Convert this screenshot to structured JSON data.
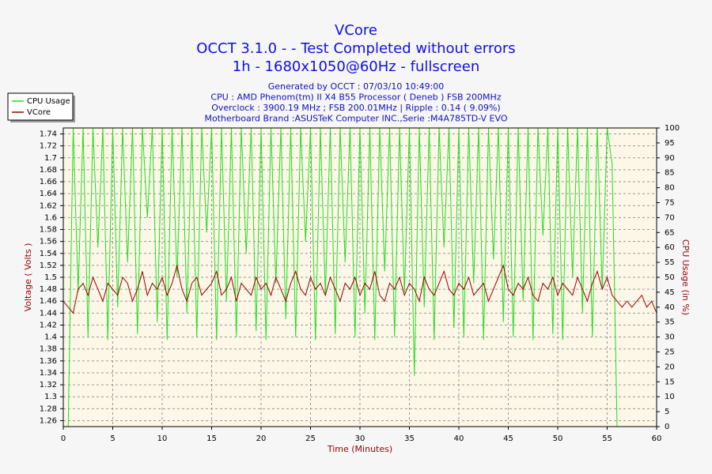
{
  "chart_data": {
    "type": "line",
    "title": [
      "VCore",
      "OCCT 3.1.0 -  - Test Completed without errors",
      "1h - 1680x1050@60Hz - fullscreen"
    ],
    "subtitle": [
      "Generated by OCCT : 07/03/10 10:49:00",
      "CPU : AMD Phenom(tm) II X4 B55 Processor ( Deneb ) FSB 200MHz",
      "Overclock : 3900.19 MHz ; FSB 200.01MHz | Ripple : 0.14 ( 9.09%)",
      "Motherboard Brand :ASUSTeK Computer INC.,Serie :M4A785TD-V EVO"
    ],
    "xlabel": "Time (Minutes)",
    "ylabel": "Voltage ( Volts )",
    "y2label": "CPU Usage (in %)",
    "x": [
      0,
      0.5,
      1,
      1.5,
      2,
      2.5,
      3,
      3.5,
      4,
      4.5,
      5,
      5.5,
      6,
      6.5,
      7,
      7.5,
      8,
      8.5,
      9,
      9.5,
      10,
      10.5,
      11,
      11.5,
      12,
      12.5,
      13,
      13.5,
      14,
      14.5,
      15,
      15.5,
      16,
      16.5,
      17,
      17.5,
      18,
      18.5,
      19,
      19.5,
      20,
      20.5,
      21,
      21.5,
      22,
      22.5,
      23,
      23.5,
      24,
      24.5,
      25,
      25.5,
      26,
      26.5,
      27,
      27.5,
      28,
      28.5,
      29,
      29.5,
      30,
      30.5,
      31,
      31.5,
      32,
      32.5,
      33,
      33.5,
      34,
      34.5,
      35,
      35.5,
      36,
      36.5,
      37,
      37.5,
      38,
      38.5,
      39,
      39.5,
      40,
      40.5,
      41,
      41.5,
      42,
      42.5,
      43,
      43.5,
      44,
      44.5,
      45,
      45.5,
      46,
      46.5,
      47,
      47.5,
      48,
      48.5,
      49,
      49.5,
      50,
      50.5,
      51,
      51.5,
      52,
      52.5,
      53,
      53.5,
      54,
      54.5,
      55,
      55.5,
      56,
      56.5,
      57,
      57.5,
      58,
      58.5,
      59,
      59.5,
      60
    ],
    "series": [
      {
        "name": "CPU Usage",
        "color": "#22dd22",
        "axis": "y2",
        "values": [
          null,
          0,
          100,
          45,
          100,
          30,
          100,
          60,
          100,
          29,
          100,
          40,
          100,
          55,
          100,
          31,
          100,
          70,
          100,
          35,
          100,
          29,
          100,
          50,
          100,
          38,
          100,
          30,
          100,
          65,
          100,
          29,
          100,
          42,
          100,
          30,
          100,
          58,
          100,
          32,
          100,
          29,
          100,
          48,
          100,
          36,
          100,
          30,
          100,
          62,
          100,
          29,
          100,
          44,
          100,
          31,
          100,
          55,
          100,
          30,
          100,
          38,
          100,
          29,
          100,
          52,
          100,
          30,
          100,
          45,
          100,
          17,
          100,
          40,
          100,
          29,
          100,
          60,
          100,
          33,
          100,
          30,
          100,
          48,
          100,
          29,
          100,
          56,
          100,
          35,
          100,
          30,
          100,
          42,
          100,
          29,
          100,
          64,
          100,
          31,
          100,
          29,
          100,
          50,
          100,
          38,
          100,
          30,
          100,
          46,
          100,
          88,
          0,
          null,
          null,
          null,
          null,
          null,
          null,
          null,
          null
        ]
      },
      {
        "name": "VCore",
        "color": "#990000",
        "values": [
          1.46,
          1.45,
          1.44,
          1.48,
          1.49,
          1.47,
          1.5,
          1.48,
          1.46,
          1.49,
          1.48,
          1.47,
          1.5,
          1.49,
          1.46,
          1.48,
          1.51,
          1.47,
          1.49,
          1.48,
          1.5,
          1.47,
          1.49,
          1.52,
          1.48,
          1.46,
          1.49,
          1.5,
          1.47,
          1.48,
          1.49,
          1.51,
          1.47,
          1.48,
          1.5,
          1.46,
          1.49,
          1.48,
          1.47,
          1.5,
          1.48,
          1.49,
          1.47,
          1.5,
          1.48,
          1.46,
          1.49,
          1.51,
          1.48,
          1.47,
          1.5,
          1.48,
          1.49,
          1.47,
          1.5,
          1.48,
          1.46,
          1.49,
          1.48,
          1.5,
          1.47,
          1.49,
          1.48,
          1.51,
          1.47,
          1.46,
          1.49,
          1.48,
          1.5,
          1.47,
          1.49,
          1.48,
          1.46,
          1.5,
          1.48,
          1.47,
          1.49,
          1.51,
          1.48,
          1.47,
          1.49,
          1.48,
          1.5,
          1.47,
          1.48,
          1.49,
          1.46,
          1.48,
          1.5,
          1.52,
          1.48,
          1.47,
          1.49,
          1.48,
          1.5,
          1.47,
          1.46,
          1.49,
          1.48,
          1.5,
          1.47,
          1.49,
          1.48,
          1.47,
          1.5,
          1.48,
          1.46,
          1.49,
          1.51,
          1.48,
          1.5,
          1.47,
          1.46,
          1.45,
          1.46,
          1.45,
          1.46,
          1.47,
          1.45,
          1.46,
          1.44
        ]
      }
    ],
    "xlim": [
      0,
      60
    ],
    "xticks": [
      0,
      5,
      10,
      15,
      20,
      25,
      30,
      35,
      40,
      45,
      50,
      55,
      60
    ],
    "ylim": [
      1.25,
      1.75
    ],
    "yticks": [
      1.26,
      1.28,
      1.3,
      1.32,
      1.34,
      1.36,
      1.38,
      1.4,
      1.42,
      1.44,
      1.46,
      1.48,
      1.5,
      1.52,
      1.54,
      1.56,
      1.58,
      1.6,
      1.62,
      1.64,
      1.66,
      1.68,
      1.7,
      1.72,
      1.74
    ],
    "y2lim": [
      0,
      100
    ],
    "y2ticks": [
      0,
      5,
      10,
      15,
      20,
      25,
      30,
      35,
      40,
      45,
      50,
      55,
      60,
      65,
      70,
      75,
      80,
      85,
      90,
      95,
      100
    ],
    "grid": true,
    "legend": "top-left"
  }
}
